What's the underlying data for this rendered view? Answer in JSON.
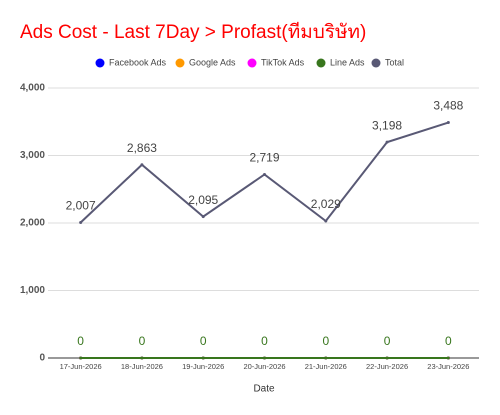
{
  "chart_data": {
    "type": "line",
    "title": "Ads Cost - Last 7Day > Profast(ทีมบริษัท)",
    "x_label": "Date",
    "categories": [
      "17-Jun-2026",
      "18-Jun-2026",
      "19-Jun-2026",
      "20-Jun-2026",
      "21-Jun-2026",
      "22-Jun-2026",
      "23-Jun-2026"
    ],
    "series": [
      {
        "name": "Facebook Ads",
        "color": "#0000ff",
        "values": [
          0,
          0,
          0,
          0,
          0,
          0,
          0
        ]
      },
      {
        "name": "Google Ads",
        "color": "#ff9900",
        "values": [
          0,
          0,
          0,
          0,
          0,
          0,
          0
        ]
      },
      {
        "name": "TikTok Ads",
        "color": "#ff00ff",
        "values": [
          0,
          0,
          0,
          0,
          0,
          0,
          0
        ]
      },
      {
        "name": "Line Ads",
        "color": "#38761d",
        "values": [
          0,
          0,
          0,
          0,
          0,
          0,
          0
        ],
        "show_labels": true
      },
      {
        "name": "Total",
        "color": "#595975",
        "values": [
          2007,
          2863,
          2095,
          2719,
          2029,
          3198,
          3488
        ],
        "value_labels": [
          "2,007",
          "2,863",
          "2,095",
          "2,719",
          "2,029",
          "3,198",
          "3,488"
        ],
        "show_labels": true
      }
    ],
    "ylim": [
      0,
      4000
    ],
    "yticks": [
      0,
      {
        "value": 1000,
        "label": "1,000"
      },
      {
        "value": 2000,
        "label": "2,000"
      },
      {
        "value": 3000,
        "label": "3,000"
      },
      {
        "value": 4000,
        "label": "4,000"
      }
    ],
    "grid": true,
    "legend": "top"
  }
}
